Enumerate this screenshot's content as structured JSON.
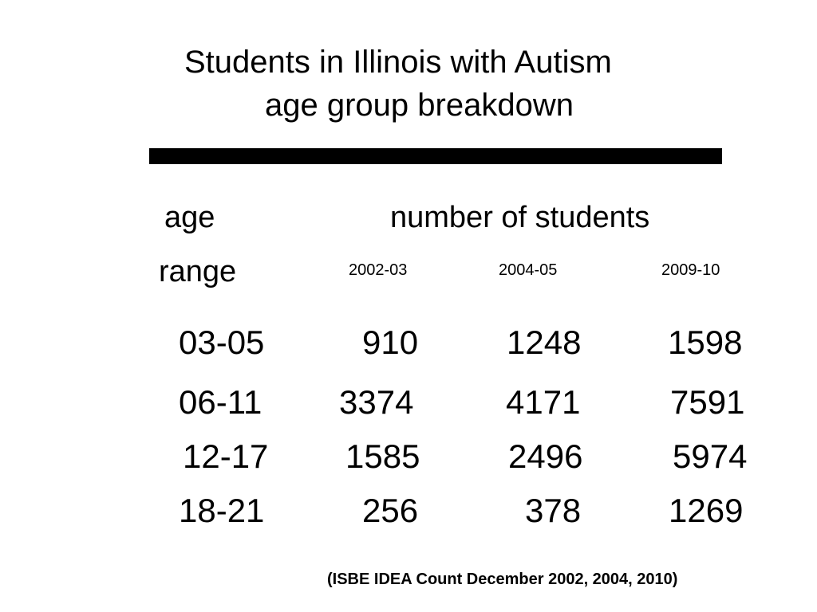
{
  "title": {
    "line1": "Students in Illinois with Autism",
    "line2": "age group breakdown"
  },
  "table": {
    "header_age": "age",
    "header_range": "range",
    "header_number": "number of students",
    "years": [
      "2002-03",
      "2004-05",
      "2009-10"
    ],
    "rows": [
      {
        "range": "03-05",
        "values": [
          "910",
          "1248",
          "1598"
        ]
      },
      {
        "range": "06-11",
        "values": [
          "3374",
          "4171",
          "7591"
        ]
      },
      {
        "range": "12-17",
        "values": [
          "1585",
          "2496",
          "5974"
        ]
      },
      {
        "range": "18-21",
        "values": [
          "256",
          "378",
          "1269"
        ]
      }
    ]
  },
  "source": "(ISBE IDEA Count December 2002, 2004, 2010)"
}
